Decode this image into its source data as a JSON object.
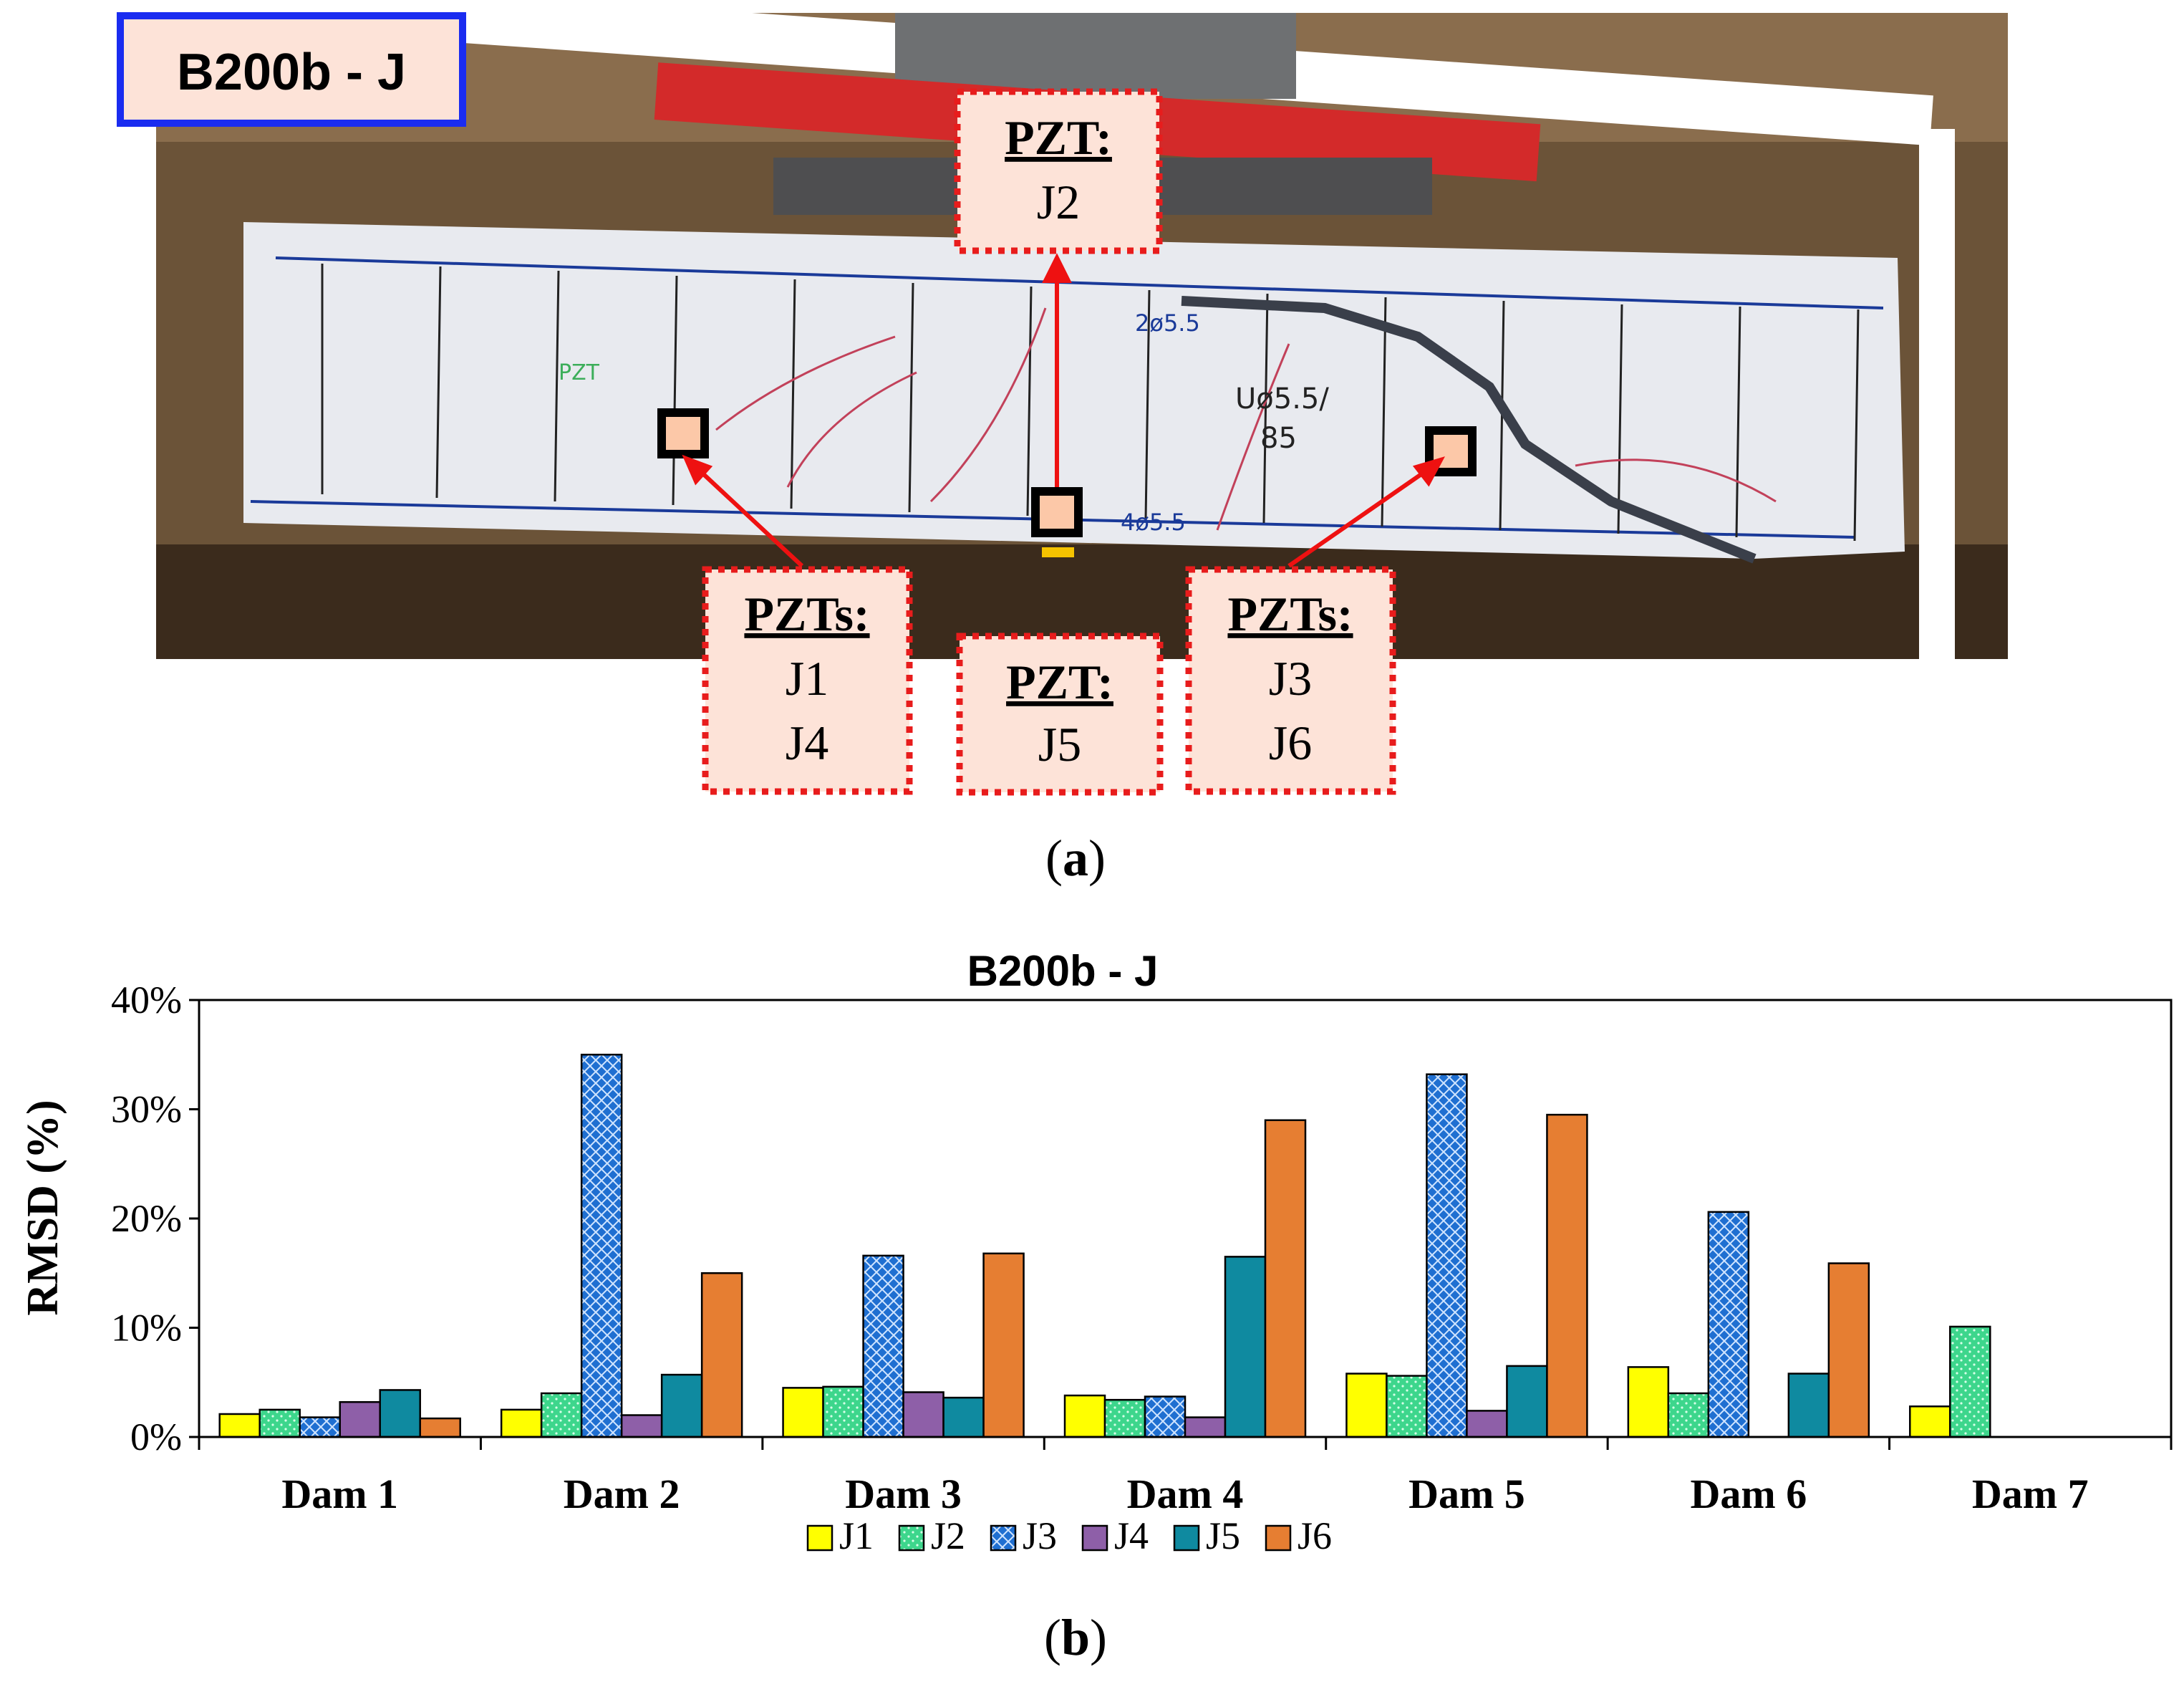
{
  "panel_a": {
    "title": "B200b - J",
    "caption": "a",
    "labels": [
      {
        "head": "PZT:",
        "lines": [
          "J2"
        ]
      },
      {
        "head": "PZTs:",
        "lines": [
          "J1",
          "J4"
        ]
      },
      {
        "head": "PZT:",
        "lines": [
          "J5"
        ]
      },
      {
        "head": "PZTs:",
        "lines": [
          "J3",
          "J6"
        ]
      }
    ],
    "beam_markings": [
      "2ø5.5",
      "Uø5.5/",
      "85",
      "4ø5.5",
      "PZT"
    ]
  },
  "panel_b": {
    "caption": "b"
  },
  "colors": {
    "J1": "#ffff00",
    "J2": "#3dd68c",
    "J3": "#1f6fd1",
    "J4": "#8e5fa8",
    "J5": "#0f8aa0",
    "J6": "#e67e32",
    "label_border": "#e81c1c",
    "title_border": "#1a2cf0"
  },
  "chart_data": {
    "type": "bar",
    "title": "B200b - J",
    "ylabel": "RMSD (%)",
    "xlabel": "",
    "ylim": [
      0,
      40
    ],
    "yticks": [
      "0%",
      "10%",
      "20%",
      "30%",
      "40%"
    ],
    "categories": [
      "Dam 1",
      "Dam 2",
      "Dam 3",
      "Dam 4",
      "Dam 5",
      "Dam 6",
      "Dam 7"
    ],
    "legend_position": "bottom",
    "grid": false,
    "series": [
      {
        "name": "J1",
        "values": [
          2.1,
          2.5,
          4.5,
          3.8,
          5.8,
          6.4,
          2.8
        ]
      },
      {
        "name": "J2",
        "values": [
          2.5,
          4.0,
          4.6,
          3.4,
          5.6,
          4.0,
          10.1
        ]
      },
      {
        "name": "J3",
        "values": [
          1.8,
          35.0,
          16.6,
          3.7,
          33.2,
          20.6,
          null
        ]
      },
      {
        "name": "J4",
        "values": [
          3.2,
          2.0,
          4.1,
          1.8,
          2.4,
          null,
          null
        ]
      },
      {
        "name": "J5",
        "values": [
          4.3,
          5.7,
          3.6,
          16.5,
          6.5,
          5.8,
          null
        ]
      },
      {
        "name": "J6",
        "values": [
          1.7,
          15.0,
          16.8,
          29.0,
          29.5,
          15.9,
          null
        ]
      }
    ]
  }
}
